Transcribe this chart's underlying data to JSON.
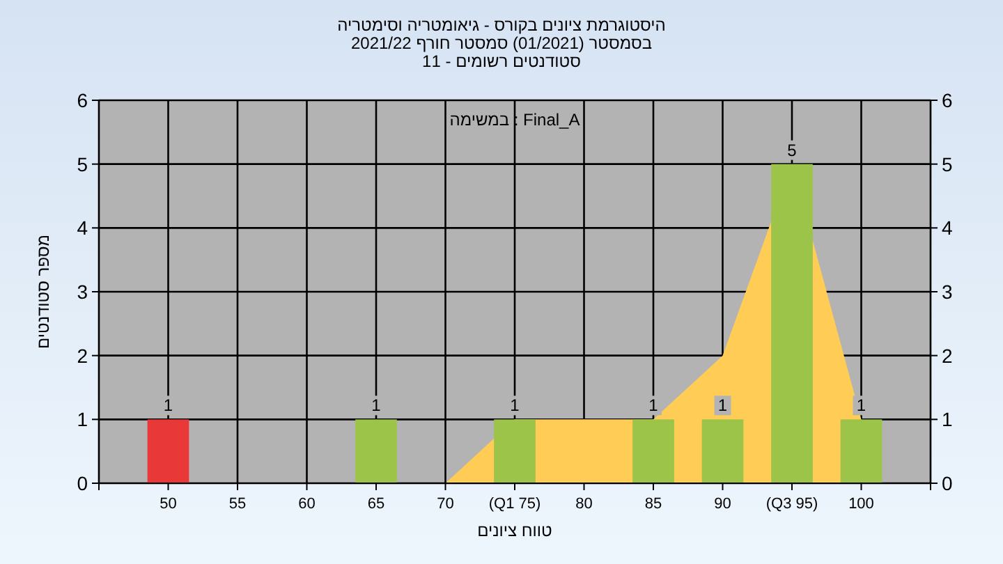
{
  "chart_data": {
    "type": "bar",
    "title": "היסטוגרמת ציונים בקורס - גיאומטריה וסימטריה",
    "subtitle": "בסמסטר  (01/2021)  סמסטר חורף 2021/22",
    "annotations": [
      "סטודנטים רשומים - 11",
      "במשימה : Final_A"
    ],
    "xlabel": "טווח ציונים",
    "ylabel": "מספר סטודנטים",
    "xlim": [
      45,
      105
    ],
    "xticks": [
      {
        "value": 45,
        "label": null
      },
      50,
      55,
      60,
      65,
      70,
      {
        "value": 75,
        "label": "(Q1 75)"
      },
      80,
      85,
      90,
      {
        "value": 95,
        "label": "(Q3 95)"
      },
      100,
      {
        "value": 105,
        "label": null
      }
    ],
    "ylim": [
      0,
      6
    ],
    "yticks": [
      0,
      1,
      2,
      3,
      4,
      5,
      6
    ],
    "y2lim": [
      0,
      6
    ],
    "y2ticks": [
      0,
      1,
      2,
      3,
      4,
      5,
      6
    ],
    "grid": true,
    "series": [
      {
        "type": "area",
        "color": "#ffcc55",
        "x": [
          70,
          75,
          80,
          85,
          90,
          95,
          100
        ],
        "values": [
          0,
          1,
          1,
          1,
          2,
          5,
          1
        ]
      },
      {
        "x": [
          50,
          65,
          75,
          85,
          90,
          95,
          100
        ],
        "values": [
          1,
          1,
          1,
          1,
          1,
          5,
          1
        ],
        "colors": [
          "#e83838",
          "#9cc448",
          "#9cc448",
          "#9cc448",
          "#9cc448",
          "#9cc448",
          "#9cc448"
        ],
        "value_labels": [
          "1",
          "1",
          "1",
          "1",
          "1",
          "5",
          "1"
        ]
      }
    ]
  }
}
